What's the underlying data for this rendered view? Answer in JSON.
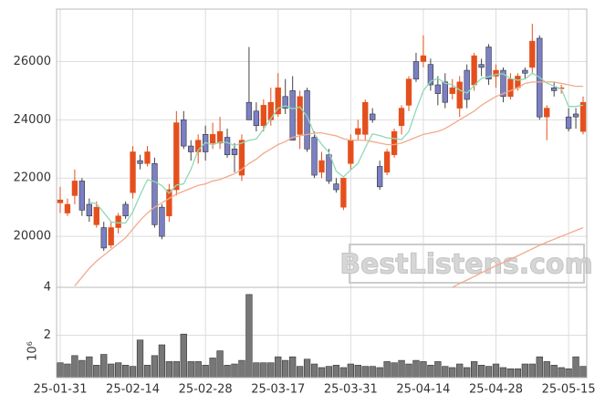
{
  "chart_data": [
    {
      "type": "candlestick",
      "open": [
        21150,
        20800,
        21400,
        21900,
        21100,
        20400,
        20300,
        19700,
        20300,
        21100,
        21500,
        22600,
        22500,
        22500,
        21000,
        20700,
        21600,
        24000,
        23100,
        22900,
        23500,
        23200,
        23200,
        23400,
        23000,
        22100,
        24600,
        24300,
        23800,
        24000,
        24200,
        24800,
        25000,
        23500,
        25000,
        23400,
        22200,
        22800,
        21800,
        21000,
        22500,
        23500,
        23500,
        24200,
        22400,
        22200,
        22800,
        23800,
        24500,
        26000,
        26000,
        25900,
        25200,
        25300,
        24900,
        24400,
        25700,
        25200,
        25900,
        26500,
        25500,
        25700,
        24800,
        25100,
        25700,
        25800,
        26800,
        24100,
        25100,
        25100,
        24100,
        24200,
        23600
      ],
      "high": [
        21700,
        21300,
        22300,
        22000,
        21300,
        21200,
        20500,
        20500,
        20800,
        21200,
        23100,
        22800,
        23100,
        22700,
        21100,
        21800,
        24300,
        24300,
        23300,
        23500,
        23800,
        23900,
        24100,
        23700,
        23200,
        23500,
        26500,
        24600,
        24700,
        25100,
        25600,
        25400,
        25500,
        25000,
        25100,
        23600,
        22900,
        23000,
        22000,
        22000,
        23500,
        24000,
        24700,
        24400,
        22600,
        23000,
        23700,
        24500,
        25500,
        26300,
        26900,
        26100,
        25500,
        25600,
        25400,
        25500,
        25900,
        26300,
        26100,
        26600,
        25900,
        25800,
        25600,
        25600,
        25800,
        27300,
        26900,
        24500,
        25300,
        25200,
        24400,
        24400,
        24800
      ],
      "low": [
        20800,
        20700,
        21100,
        20700,
        20500,
        20300,
        19500,
        19600,
        20100,
        20600,
        21300,
        22300,
        22400,
        20300,
        19900,
        20500,
        21400,
        23000,
        22600,
        22500,
        22600,
        23000,
        23000,
        22700,
        22200,
        21900,
        24000,
        23600,
        23600,
        23800,
        24100,
        24200,
        23300,
        23000,
        22900,
        22000,
        22000,
        21800,
        21500,
        20900,
        22300,
        23300,
        23300,
        23900,
        21600,
        22100,
        22700,
        23500,
        24300,
        25300,
        25800,
        25000,
        24500,
        24400,
        24700,
        24100,
        24400,
        25000,
        25500,
        25200,
        25100,
        24600,
        24700,
        25000,
        25400,
        25600,
        24000,
        23300,
        24800,
        24900,
        23600,
        23700,
        23500
      ],
      "close": [
        21250,
        21100,
        21900,
        20900,
        20700,
        21000,
        19600,
        20300,
        20700,
        20700,
        22900,
        22500,
        22900,
        20400,
        20000,
        21600,
        23900,
        23100,
        22900,
        23300,
        22900,
        23500,
        23600,
        22800,
        22800,
        23300,
        24000,
        23800,
        24500,
        24600,
        25100,
        24400,
        23300,
        24800,
        23000,
        22100,
        22600,
        21900,
        21600,
        22000,
        23300,
        23700,
        24600,
        24000,
        21700,
        22900,
        23600,
        24400,
        25400,
        25400,
        26200,
        25200,
        24900,
        24600,
        25100,
        25300,
        24700,
        26200,
        25800,
        25400,
        25700,
        24800,
        25400,
        25500,
        25600,
        26700,
        24100,
        24400,
        25000,
        25100,
        23700,
        24100,
        24600
      ],
      "up_color": "#e4501d",
      "down_color": "#7b7fc4",
      "overlays": [
        {
          "color": "#8fd9b6",
          "values": [
            null,
            null,
            null,
            null,
            21170,
            21120,
            20820,
            20500,
            20460,
            20460,
            20840,
            21420,
            21940,
            21880,
            21740,
            21480,
            21760,
            21800,
            22300,
            22960,
            23220,
            23140,
            23240,
            23220,
            23120,
            23200,
            23300,
            23340,
            23680,
            24040,
            24400,
            24480,
            24380,
            24440,
            24120,
            23520,
            23160,
            22880,
            22240,
            22040,
            22280,
            22500,
            23040,
            23520,
            23460,
            23380,
            23360,
            23320,
            23600,
            24340,
            25000,
            25320,
            25420,
            25260,
            25200,
            25020,
            24920,
            25180,
            25420,
            25480,
            25560,
            25580,
            25420,
            25360,
            25400,
            25600,
            25460,
            25260,
            25160,
            25060,
            24460,
            24460,
            24500
          ]
        },
        {
          "color": "#f2aa8c",
          "values": [
            null,
            null,
            18300,
            18600,
            18900,
            19150,
            19350,
            19550,
            19750,
            19950,
            20250,
            20550,
            20800,
            21000,
            21150,
            21300,
            21450,
            21550,
            21650,
            21750,
            21800,
            21900,
            21950,
            22050,
            22150,
            22300,
            22500,
            22650,
            22850,
            23000,
            23150,
            23250,
            23400,
            23450,
            23500,
            23550,
            23550,
            23500,
            23450,
            23350,
            23300,
            23300,
            23300,
            23250,
            23200,
            23150,
            23150,
            23200,
            23300,
            23400,
            23500,
            23550,
            23600,
            23700,
            23850,
            24000,
            24150,
            24300,
            24500,
            24650,
            24800,
            24900,
            25000,
            25100,
            25250,
            25300,
            25300,
            25300,
            25300,
            25250,
            25200,
            25150,
            25150
          ]
        },
        {
          "color": "#f2aa8c",
          "values": [
            null,
            null,
            null,
            null,
            null,
            null,
            null,
            null,
            null,
            null,
            null,
            null,
            null,
            null,
            null,
            null,
            null,
            null,
            null,
            null,
            null,
            null,
            null,
            null,
            null,
            null,
            null,
            null,
            null,
            null,
            null,
            null,
            null,
            null,
            null,
            null,
            null,
            null,
            null,
            null,
            null,
            null,
            null,
            null,
            null,
            null,
            null,
            null,
            null,
            null,
            null,
            null,
            null,
            null,
            18250,
            18380,
            18500,
            18620,
            18750,
            18870,
            18990,
            19100,
            19220,
            19330,
            19450,
            19570,
            19690,
            19800,
            19900,
            20000,
            20100,
            20200,
            20300
          ]
        }
      ],
      "ylim": [
        18250,
        27800
      ],
      "yticks": [
        20000,
        22000,
        24000,
        26000
      ],
      "grid": true
    },
    {
      "type": "bar",
      "ylabel": "10⁶",
      "categories": [
        "25-01-31",
        null,
        null,
        null,
        null,
        null,
        null,
        null,
        null,
        null,
        "25-02-14",
        null,
        null,
        null,
        null,
        null,
        null,
        null,
        null,
        null,
        "25-02-28",
        null,
        null,
        null,
        null,
        null,
        null,
        null,
        null,
        null,
        "25-03-17",
        null,
        null,
        null,
        null,
        null,
        null,
        null,
        null,
        null,
        "25-03-31",
        null,
        null,
        null,
        null,
        null,
        null,
        null,
        null,
        null,
        "25-04-14",
        null,
        null,
        null,
        null,
        null,
        null,
        null,
        null,
        null,
        "25-04-28",
        null,
        null,
        null,
        null,
        null,
        null,
        null,
        null,
        null,
        "25-05-15",
        null,
        null
      ],
      "values": [
        0.85,
        0.8,
        1.15,
        0.95,
        1.1,
        0.75,
        1.2,
        0.8,
        0.85,
        0.75,
        0.7,
        1.8,
        0.75,
        1.15,
        1.6,
        0.9,
        0.9,
        2.05,
        0.9,
        0.9,
        0.75,
        1.05,
        1.35,
        0.75,
        0.8,
        0.95,
        3.7,
        0.85,
        0.85,
        0.85,
        1.1,
        0.95,
        1.1,
        0.7,
        1.0,
        0.8,
        0.65,
        0.7,
        0.75,
        0.65,
        0.8,
        0.75,
        0.7,
        0.7,
        0.65,
        0.9,
        0.85,
        0.95,
        0.8,
        0.95,
        0.9,
        0.75,
        0.9,
        0.7,
        0.65,
        0.8,
        0.65,
        0.9,
        0.75,
        0.7,
        0.8,
        0.65,
        0.6,
        0.6,
        0.8,
        0.8,
        1.1,
        0.9,
        0.75,
        0.65,
        0.6,
        1.1,
        0.7
      ],
      "color": "#777777",
      "ylim": [
        0.23,
        4
      ],
      "yticks": [
        2,
        4
      ],
      "grid": true
    }
  ],
  "watermark": "BestListens.com"
}
